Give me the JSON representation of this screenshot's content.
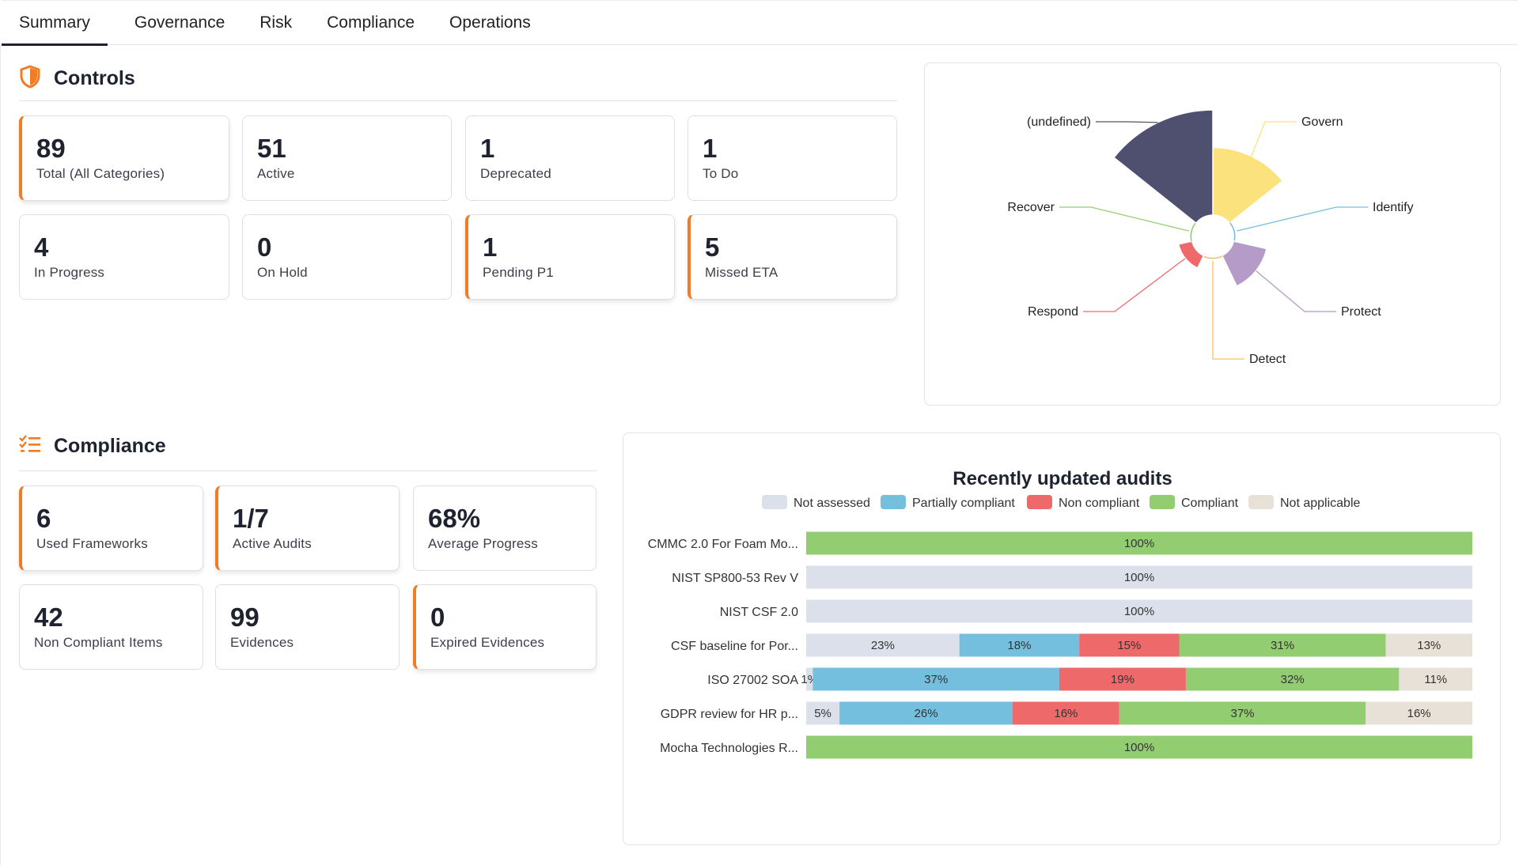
{
  "tabs": [
    {
      "label": "Summary",
      "active": true
    },
    {
      "label": "Governance",
      "active": false
    },
    {
      "label": "Risk",
      "active": false
    },
    {
      "label": "Compliance",
      "active": false
    },
    {
      "label": "Operations",
      "active": false
    }
  ],
  "controls": {
    "title": "Controls",
    "icon": "shield-icon",
    "cards": [
      {
        "value": "89",
        "label": "Total (All Categories)",
        "accent": true
      },
      {
        "value": "51",
        "label": "Active",
        "accent": false
      },
      {
        "value": "1",
        "label": "Deprecated",
        "accent": false
      },
      {
        "value": "1",
        "label": "To Do",
        "accent": false
      },
      {
        "value": "4",
        "label": "In Progress",
        "accent": false
      },
      {
        "value": "0",
        "label": "On Hold",
        "accent": false
      },
      {
        "value": "1",
        "label": "Pending P1",
        "accent": true
      },
      {
        "value": "5",
        "label": "Missed ETA",
        "accent": true
      }
    ]
  },
  "compliance": {
    "title": "Compliance",
    "icon": "checklist-icon",
    "cards": [
      {
        "value": "6",
        "label": "Used Frameworks",
        "accent": true
      },
      {
        "value": "1/7",
        "label": "Active Audits",
        "accent": true
      },
      {
        "value": "68%",
        "label": "Average Progress",
        "accent": false
      },
      {
        "value": "42",
        "label": "Non Compliant Items",
        "accent": false
      },
      {
        "value": "99",
        "label": "Evidences",
        "accent": false
      },
      {
        "value": "0",
        "label": "Expired Evidences",
        "accent": true
      }
    ]
  },
  "colors": {
    "accent": "#f07c26",
    "not_assessed": "#dbe0ea",
    "partially_compliant": "#74bfde",
    "non_compliant": "#ee6a6a",
    "compliant": "#93cd72",
    "not_applicable": "#e8e1d8"
  },
  "chart_data": [
    {
      "type": "pie",
      "variant": "polar-rose",
      "categories": [
        "Govern",
        "Identify",
        "Protect",
        "Detect",
        "Respond",
        "Recover",
        "(undefined)"
      ],
      "values": [
        24,
        0,
        6,
        0,
        1,
        0,
        58
      ],
      "colors": [
        "#fbe27d",
        "#74bfde",
        "#b49bc8",
        "#f5c160",
        "#ee6a6a",
        "#93cd72",
        "#4f5070"
      ]
    },
    {
      "type": "bar",
      "orientation": "horizontal-stacked-100",
      "title": "Recently updated audits",
      "legend_position": "top",
      "categories": [
        "CMMC 2.0 For Foam Mo...",
        "NIST SP800-53 Rev V",
        "NIST CSF 2.0",
        "CSF baseline for Por...",
        "ISO 27002 SOA",
        "GDPR review for HR p...",
        "Mocha Technologies R..."
      ],
      "series": [
        {
          "name": "Not assessed",
          "values": [
            0,
            100,
            100,
            23,
            1,
            5,
            0
          ]
        },
        {
          "name": "Partially compliant",
          "values": [
            0,
            0,
            0,
            18,
            37,
            26,
            0
          ]
        },
        {
          "name": "Non compliant",
          "values": [
            0,
            0,
            0,
            15,
            19,
            16,
            0
          ]
        },
        {
          "name": "Compliant",
          "values": [
            100,
            0,
            0,
            31,
            32,
            37,
            100
          ]
        },
        {
          "name": "Not applicable",
          "values": [
            0,
            0,
            0,
            13,
            11,
            16,
            0
          ]
        }
      ],
      "xlim": [
        0,
        100
      ]
    }
  ]
}
